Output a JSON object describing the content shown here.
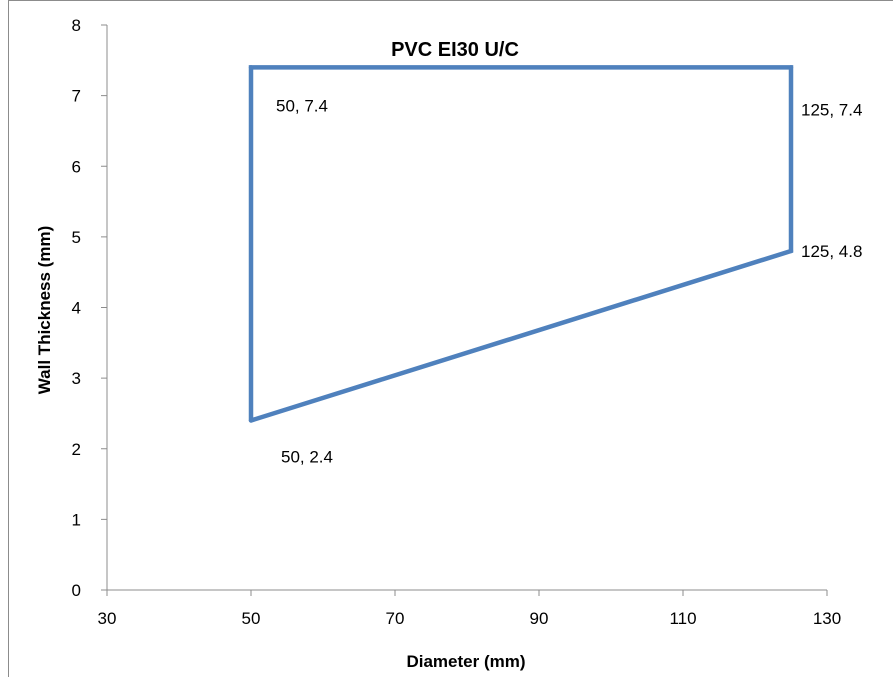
{
  "chart_data": {
    "type": "line",
    "title": "PVC EI30 U/C",
    "xlabel": "Diameter (mm)",
    "ylabel": "Wall Thickness (mm)",
    "xlim": [
      30,
      130
    ],
    "ylim": [
      0,
      8
    ],
    "xticks": [
      30,
      50,
      70,
      90,
      110,
      130
    ],
    "yticks": [
      0,
      1,
      2,
      3,
      4,
      5,
      6,
      7,
      8
    ],
    "grid": false,
    "legend": "none",
    "series": [
      {
        "color": "#4f81bd",
        "points": [
          {
            "x": 50,
            "y": 2.4,
            "label": "50, 2.4"
          },
          {
            "x": 50,
            "y": 7.4,
            "label": "50, 7.4"
          },
          {
            "x": 125,
            "y": 7.4,
            "label": "125, 7.4"
          },
          {
            "x": 125,
            "y": 4.8,
            "label": "125, 4.8"
          },
          {
            "x": 50,
            "y": 2.4
          }
        ]
      }
    ]
  }
}
